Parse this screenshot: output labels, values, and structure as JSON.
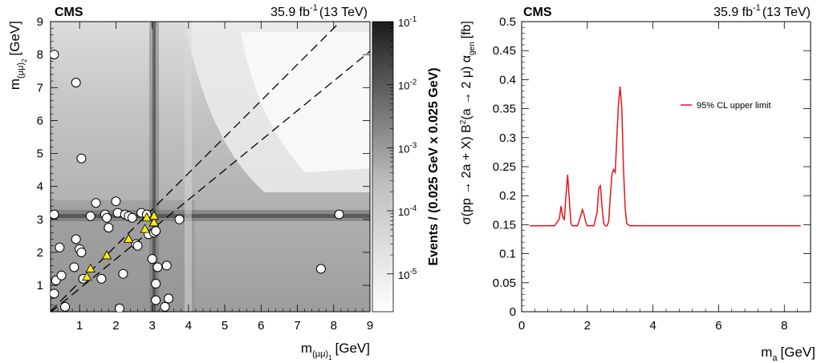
{
  "chart_data": [
    {
      "type": "scatter",
      "experiment": "CMS",
      "lumi": {
        "value": "35.9 fb",
        "exp": "-1",
        "energy": "(13 TeV)"
      },
      "xlabel": {
        "main": "m",
        "sub": "(μμ)",
        "subsub": "1",
        "unit": "[GeV]"
      },
      "ylabel": {
        "main": "m",
        "sub": "(μμ)",
        "subsub": "2",
        "unit": "[GeV]"
      },
      "xlim": [
        0.2,
        9
      ],
      "ylim": [
        0.2,
        9
      ],
      "xticks": [
        "1",
        "2",
        "3",
        "4",
        "5",
        "6",
        "7",
        "8",
        "9"
      ],
      "yticks": [
        "1",
        "2",
        "3",
        "4",
        "5",
        "6",
        "7",
        "8",
        "9"
      ],
      "colorbar": {
        "label": "Events / (0.025 GeV x 0.025 GeV)",
        "ticks": [
          {
            "base": "10",
            "exp": "-1"
          },
          {
            "base": "10",
            "exp": "-2"
          },
          {
            "base": "10",
            "exp": "-3"
          },
          {
            "base": "10",
            "exp": "-4"
          },
          {
            "base": "10",
            "exp": "-5"
          }
        ],
        "log_range": [
          -5.6,
          -1
        ]
      },
      "series": [
        {
          "marker": "circle",
          "color": "#ffffff",
          "points": [
            [
              0.3,
              8.0
            ],
            [
              0.9,
              7.15
            ],
            [
              1.05,
              4.85
            ],
            [
              0.3,
              3.15
            ],
            [
              0.45,
              2.15
            ],
            [
              0.35,
              1.15
            ],
            [
              0.5,
              1.3
            ],
            [
              0.3,
              0.75
            ],
            [
              0.6,
              0.35
            ],
            [
              0.85,
              1.55
            ],
            [
              0.9,
              2.4
            ],
            [
              1.0,
              2.1
            ],
            [
              1.05,
              2.0
            ],
            [
              1.1,
              1.2
            ],
            [
              1.3,
              3.1
            ],
            [
              1.45,
              3.5
            ],
            [
              1.6,
              1.2
            ],
            [
              1.7,
              3.15
            ],
            [
              1.75,
              3.05
            ],
            [
              1.8,
              2.75
            ],
            [
              2.0,
              3.55
            ],
            [
              2.05,
              3.2
            ],
            [
              2.1,
              0.3
            ],
            [
              2.2,
              1.35
            ],
            [
              2.25,
              3.15
            ],
            [
              2.35,
              3.1
            ],
            [
              2.45,
              3.05
            ],
            [
              2.55,
              2.25
            ],
            [
              2.6,
              2.2
            ],
            [
              2.7,
              3.2
            ],
            [
              2.85,
              3.15
            ],
            [
              2.9,
              2.55
            ],
            [
              3.0,
              1.8
            ],
            [
              3.05,
              2.6
            ],
            [
              3.1,
              2.65
            ],
            [
              3.1,
              1.05
            ],
            [
              3.1,
              0.55
            ],
            [
              3.15,
              1.55
            ],
            [
              3.35,
              0.35
            ],
            [
              3.4,
              1.6
            ],
            [
              3.45,
              0.6
            ],
            [
              3.75,
              3.0
            ],
            [
              7.65,
              1.5
            ],
            [
              8.15,
              3.15
            ]
          ]
        },
        {
          "marker": "triangle",
          "color": "#f5ea14",
          "points": [
            [
              1.2,
              1.25
            ],
            [
              1.3,
              1.5
            ],
            [
              1.75,
              1.9
            ],
            [
              2.35,
              2.4
            ],
            [
              2.8,
              2.7
            ],
            [
              2.85,
              3.05
            ],
            [
              3.05,
              2.9
            ],
            [
              3.05,
              3.1
            ]
          ]
        }
      ],
      "diagonals": [
        {
          "slope": 1.1,
          "intercept": 0
        },
        {
          "slope": 0.9,
          "intercept": 0
        }
      ]
    },
    {
      "type": "line",
      "experiment": "CMS",
      "lumi": {
        "value": "35.9 fb",
        "exp": "-1",
        "energy": "(13 TeV)"
      },
      "xlabel": {
        "main": "m",
        "sub": "a",
        "unit": "[GeV]"
      },
      "ylabel": {
        "p1": "σ(pp → 2a + X) B",
        "p1sup": "2",
        "p2": "(a → 2 μ) α",
        "p2sub": "gen",
        "p3": "[fb]"
      },
      "xlim": [
        0,
        8.8
      ],
      "ylim": [
        0,
        0.5
      ],
      "xticks": [
        "0",
        "2",
        "4",
        "6",
        "8"
      ],
      "yticks": [
        "0",
        "0.05",
        "0.1",
        "0.15",
        "0.2",
        "0.25",
        "0.3",
        "0.35",
        "0.4",
        "0.45",
        "0.5"
      ],
      "legend": {
        "label": "95% CL upper limit",
        "position": "top-right"
      },
      "series": [
        {
          "name": "95% CL upper limit",
          "color": "#e8141a",
          "x": [
            0.25,
            1.0,
            1.15,
            1.2,
            1.25,
            1.3,
            1.35,
            1.4,
            1.45,
            1.5,
            1.55,
            1.6,
            1.7,
            1.8,
            1.85,
            1.9,
            1.95,
            2.0,
            2.05,
            2.1,
            2.2,
            2.3,
            2.35,
            2.4,
            2.45,
            2.5,
            2.55,
            2.6,
            2.65,
            2.7,
            2.75,
            2.8,
            2.85,
            2.9,
            2.95,
            3.0,
            3.05,
            3.1,
            3.15,
            3.2,
            3.3,
            3.5,
            8.5
          ],
          "y": [
            0.148,
            0.148,
            0.16,
            0.182,
            0.165,
            0.158,
            0.2,
            0.236,
            0.195,
            0.152,
            0.148,
            0.148,
            0.148,
            0.165,
            0.176,
            0.168,
            0.155,
            0.148,
            0.148,
            0.148,
            0.148,
            0.172,
            0.213,
            0.217,
            0.18,
            0.152,
            0.148,
            0.148,
            0.155,
            0.2,
            0.237,
            0.245,
            0.24,
            0.3,
            0.36,
            0.388,
            0.35,
            0.25,
            0.18,
            0.152,
            0.148,
            0.148,
            0.148
          ]
        }
      ]
    }
  ]
}
